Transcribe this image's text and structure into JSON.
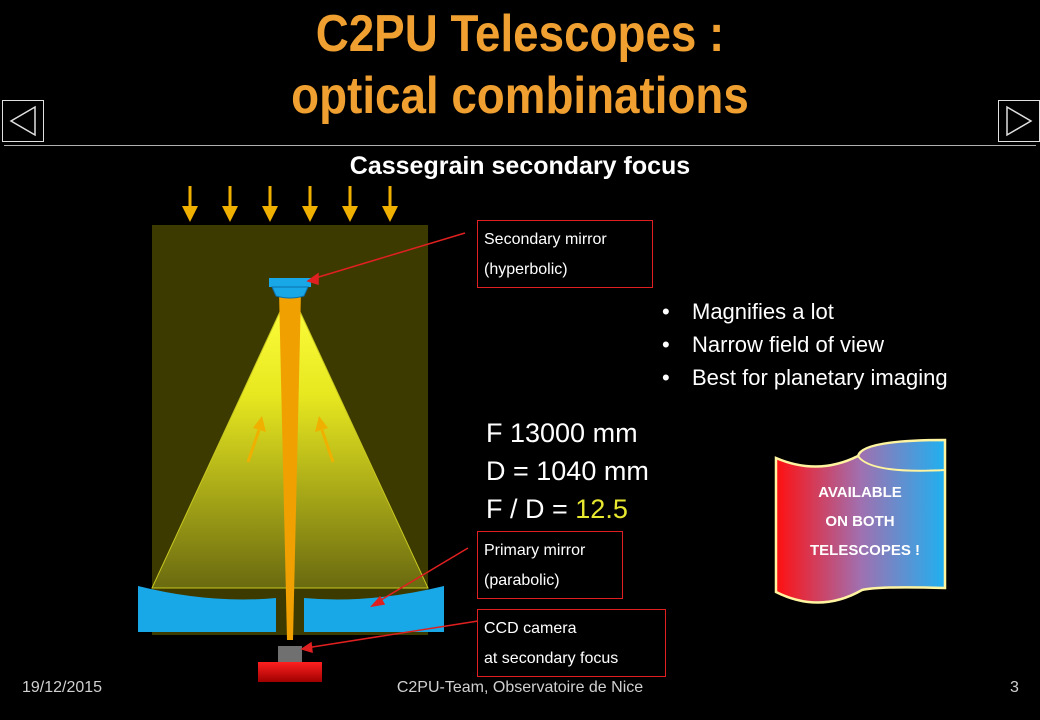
{
  "title": {
    "line1": "C2PU Telescopes :",
    "line2": "optical combinations"
  },
  "subtitle": "Cassegrain secondary focus",
  "labels": {
    "secondary_mirror": [
      "Secondary mirror",
      "(hyperbolic)"
    ],
    "primary_mirror": [
      "Primary mirror",
      "(parabolic)"
    ],
    "ccd_camera": [
      "CCD camera",
      "at secondary focus"
    ]
  },
  "bullets": [
    "Magnifies a lot",
    "Narrow field of view",
    "Best for planetary imaging"
  ],
  "specs": {
    "focal": "F  13000 mm",
    "diameter": "D = 1040 mm",
    "ratio_prefix": "F / D = ",
    "ratio_value": "12.5"
  },
  "banner": [
    "AVAILABLE",
    "ON BOTH",
    "TELESCOPES !"
  ],
  "footer": {
    "date": "19/12/2015",
    "center": "C2PU-Team, Observatoire de Nice",
    "page": "3"
  },
  "colors": {
    "title": "#f0a030",
    "mirror": "#18a8e8",
    "tube": "#3d3a00",
    "arrows": "#f0b000",
    "accent_value": "#e8e830",
    "label_border": "#e02020"
  },
  "icons": {
    "prev": "triangle-left-icon",
    "next": "triangle-right-icon"
  }
}
